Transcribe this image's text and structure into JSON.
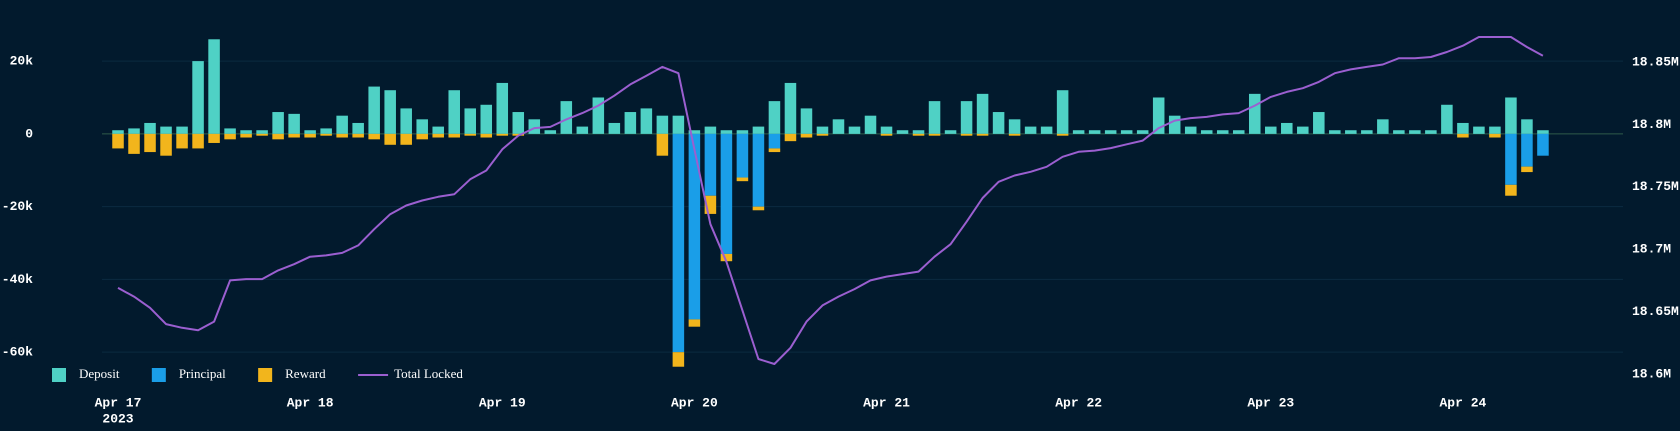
{
  "chart_data": {
    "type": "bar-line",
    "year_label": "2023",
    "x": [
      "2023-04-17T00:00",
      "2023-04-17T02:00",
      "2023-04-17T04:00",
      "2023-04-17T06:00",
      "2023-04-17T08:00",
      "2023-04-17T10:00",
      "2023-04-17T12:00",
      "2023-04-17T14:00",
      "2023-04-17T16:00",
      "2023-04-17T18:00",
      "2023-04-17T20:00",
      "2023-04-17T22:00",
      "2023-04-18T00:00",
      "2023-04-18T02:00",
      "2023-04-18T04:00",
      "2023-04-18T06:00",
      "2023-04-18T08:00",
      "2023-04-18T10:00",
      "2023-04-18T12:00",
      "2023-04-18T14:00",
      "2023-04-18T16:00",
      "2023-04-18T18:00",
      "2023-04-18T20:00",
      "2023-04-18T22:00",
      "2023-04-19T00:00",
      "2023-04-19T02:00",
      "2023-04-19T04:00",
      "2023-04-19T06:00",
      "2023-04-19T08:00",
      "2023-04-19T10:00",
      "2023-04-19T12:00",
      "2023-04-19T14:00",
      "2023-04-19T16:00",
      "2023-04-19T18:00",
      "2023-04-19T20:00",
      "2023-04-19T22:00",
      "2023-04-20T00:00",
      "2023-04-20T02:00",
      "2023-04-20T04:00",
      "2023-04-20T06:00",
      "2023-04-20T08:00",
      "2023-04-20T10:00",
      "2023-04-20T12:00",
      "2023-04-20T14:00",
      "2023-04-20T16:00",
      "2023-04-20T18:00",
      "2023-04-20T20:00",
      "2023-04-20T22:00",
      "2023-04-21T00:00",
      "2023-04-21T02:00",
      "2023-04-21T04:00",
      "2023-04-21T06:00",
      "2023-04-21T08:00",
      "2023-04-21T10:00",
      "2023-04-21T12:00",
      "2023-04-21T14:00",
      "2023-04-21T16:00",
      "2023-04-21T18:00",
      "2023-04-21T20:00",
      "2023-04-21T22:00",
      "2023-04-22T00:00",
      "2023-04-22T02:00",
      "2023-04-22T04:00",
      "2023-04-22T06:00",
      "2023-04-22T08:00",
      "2023-04-22T10:00",
      "2023-04-22T12:00",
      "2023-04-22T14:00",
      "2023-04-22T16:00",
      "2023-04-22T18:00",
      "2023-04-22T20:00",
      "2023-04-22T22:00",
      "2023-04-23T00:00",
      "2023-04-23T02:00",
      "2023-04-23T04:00",
      "2023-04-23T06:00",
      "2023-04-23T08:00",
      "2023-04-23T10:00",
      "2023-04-23T12:00",
      "2023-04-23T14:00",
      "2023-04-23T16:00",
      "2023-04-23T18:00",
      "2023-04-23T20:00",
      "2023-04-23T22:00",
      "2023-04-24T00:00",
      "2023-04-24T02:00",
      "2023-04-24T04:00",
      "2023-04-24T06:00",
      "2023-04-24T08:00",
      "2023-04-24T10:00"
    ],
    "series": [
      {
        "name": "Deposit",
        "color": "#4fd1c5",
        "values": [
          1000,
          1500,
          3000,
          2000,
          2000,
          20000,
          26000,
          1500,
          1000,
          1000,
          6000,
          5500,
          1000,
          1500,
          5000,
          3000,
          13000,
          12000,
          7000,
          4000,
          2000,
          12000,
          7000,
          8000,
          14000,
          6000,
          4000,
          1000,
          9000,
          2000,
          10000,
          3000,
          6000,
          7000,
          5000,
          5000,
          1000,
          2000,
          1000,
          1000,
          2000,
          9000,
          14000,
          7000,
          2000,
          4000,
          2000,
          5000,
          2000,
          1000,
          1000,
          9000,
          1000,
          9000,
          11000,
          6000,
          4000,
          2000,
          2000,
          12000,
          1000,
          1000,
          1000,
          1000,
          1000,
          10000,
          5000,
          2000,
          1000,
          1000,
          1000,
          11000,
          2000,
          3000,
          2000,
          6000,
          1000,
          1000,
          1000,
          4000,
          1000,
          1000,
          1000,
          8000,
          3000,
          2000,
          2000,
          10000,
          4000,
          1000
        ]
      },
      {
        "name": "Principal",
        "color": "#1a9ee8",
        "values": [
          0,
          0,
          0,
          0,
          0,
          0,
          0,
          0,
          0,
          0,
          0,
          0,
          0,
          0,
          0,
          0,
          0,
          0,
          0,
          0,
          0,
          0,
          0,
          0,
          0,
          0,
          0,
          0,
          0,
          0,
          0,
          0,
          0,
          0,
          0,
          -60000,
          -51000,
          -17000,
          -33000,
          -12000,
          -20000,
          -4000,
          0,
          0,
          0,
          0,
          0,
          0,
          0,
          0,
          0,
          0,
          0,
          0,
          0,
          0,
          0,
          0,
          0,
          0,
          0,
          0,
          0,
          0,
          0,
          0,
          0,
          0,
          0,
          0,
          0,
          0,
          0,
          0,
          0,
          0,
          0,
          0,
          0,
          0,
          0,
          0,
          0,
          0,
          0,
          0,
          0,
          -14000,
          -9000,
          -6000
        ]
      },
      {
        "name": "Reward",
        "color": "#f2b51c",
        "values": [
          -4000,
          -5500,
          -5000,
          -6000,
          -4000,
          -4000,
          -2500,
          -1500,
          -1000,
          -500,
          -1500,
          -1000,
          -1000,
          -500,
          -1000,
          -1000,
          -1500,
          -3000,
          -3000,
          -1500,
          -1000,
          -1000,
          -500,
          -1000,
          -500,
          -500,
          0,
          0,
          0,
          0,
          0,
          0,
          0,
          0,
          -6000,
          -4000,
          -2000,
          -5000,
          -2000,
          -1000,
          -1000,
          -1000,
          -2000,
          -1000,
          -500,
          0,
          0,
          0,
          -500,
          0,
          -500,
          -500,
          0,
          -500,
          -500,
          0,
          -500,
          0,
          0,
          -500,
          0,
          0,
          0,
          0,
          0,
          0,
          0,
          0,
          0,
          0,
          0,
          0,
          0,
          0,
          0,
          0,
          0,
          0,
          0,
          0,
          0,
          0,
          0,
          0,
          -1000,
          0,
          -1000,
          -3000,
          -1500,
          0
        ]
      },
      {
        "name": "Total Locked",
        "color": "#9b5fd0",
        "axis": "y2",
        "kind": "line",
        "values": [
          18669000,
          18662000,
          18653000,
          18640000,
          18637000,
          18635000,
          18642000,
          18675000,
          18676000,
          18676000,
          18683000,
          18688000,
          18694000,
          18695000,
          18697000,
          18703000,
          18716000,
          18728000,
          18735000,
          18739000,
          18742000,
          18744000,
          18756000,
          18763000,
          18780000,
          18791000,
          18797000,
          18798000,
          18804000,
          18809000,
          18815000,
          18823000,
          18832000,
          18839000,
          18846000,
          18841000,
          18780000,
          18720000,
          18690000,
          18651000,
          18612000,
          18608000,
          18621000,
          18642000,
          18655000,
          18662000,
          18668000,
          18675000,
          18678000,
          18680000,
          18682000,
          18694000,
          18704000,
          18722000,
          18741000,
          18754000,
          18759000,
          18762000,
          18766000,
          18774000,
          18778000,
          18779000,
          18781000,
          18784000,
          18787000,
          18797000,
          18803000,
          18805000,
          18806000,
          18808000,
          18809000,
          18815000,
          18822000,
          18826000,
          18829000,
          18834000,
          18841000,
          18844000,
          18846000,
          18848000,
          18853000,
          18853000,
          18854000,
          18858000,
          18863000,
          18870000,
          18870000,
          18870000,
          18862000,
          18855000
        ]
      }
    ],
    "xlim": [
      "2023-04-16T22:00",
      "2023-04-24T20:00"
    ],
    "xticks": [
      {
        "value": "2023-04-17T00:00",
        "label": "Apr 17"
      },
      {
        "value": "2023-04-18T00:00",
        "label": "Apr 18"
      },
      {
        "value": "2023-04-19T00:00",
        "label": "Apr 19"
      },
      {
        "value": "2023-04-20T00:00",
        "label": "Apr 20"
      },
      {
        "value": "2023-04-21T00:00",
        "label": "Apr 21"
      },
      {
        "value": "2023-04-22T00:00",
        "label": "Apr 22"
      },
      {
        "value": "2023-04-23T00:00",
        "label": "Apr 23"
      },
      {
        "value": "2023-04-24T00:00",
        "label": "Apr 24"
      }
    ],
    "ylim": [
      -66000,
      28000
    ],
    "yticks": [
      {
        "value": -60000,
        "label": "-60k"
      },
      {
        "value": -40000,
        "label": "-40k"
      },
      {
        "value": -20000,
        "label": "-20k"
      },
      0,
      {
        "value": 20000,
        "label": "20k"
      }
    ],
    "y2lim": [
      18600000,
      18874000
    ],
    "y2ticks": [
      {
        "value": 18600000,
        "label": "18.6M"
      },
      {
        "value": 18650000,
        "label": "18.65M"
      },
      {
        "value": 18700000,
        "label": "18.7M"
      },
      {
        "value": 18750000,
        "label": "18.75M"
      },
      {
        "value": 18800000,
        "label": "18.8M"
      },
      {
        "value": 18850000,
        "label": "18.85M"
      }
    ],
    "grid": true,
    "legend": "bottom-left"
  }
}
